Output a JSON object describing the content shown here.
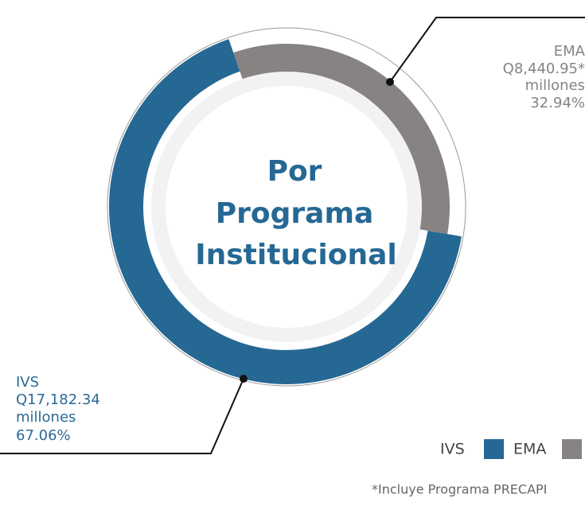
{
  "chart_data": {
    "type": "pie",
    "donut": true,
    "title_lines": [
      "Por",
      "Programa",
      "Institucional"
    ],
    "categories": [
      "IVS",
      "EMA"
    ],
    "values": [
      67.06,
      32.94
    ],
    "value_labels": [
      "67.06%",
      "32.94%"
    ],
    "amount_labels": [
      "Q17,182.34",
      "Q8,440.95*"
    ],
    "unit_label": "millones",
    "colors": [
      "#266894",
      "#878382"
    ],
    "footnote": "*Incluye Programa PRECAPI"
  }
}
